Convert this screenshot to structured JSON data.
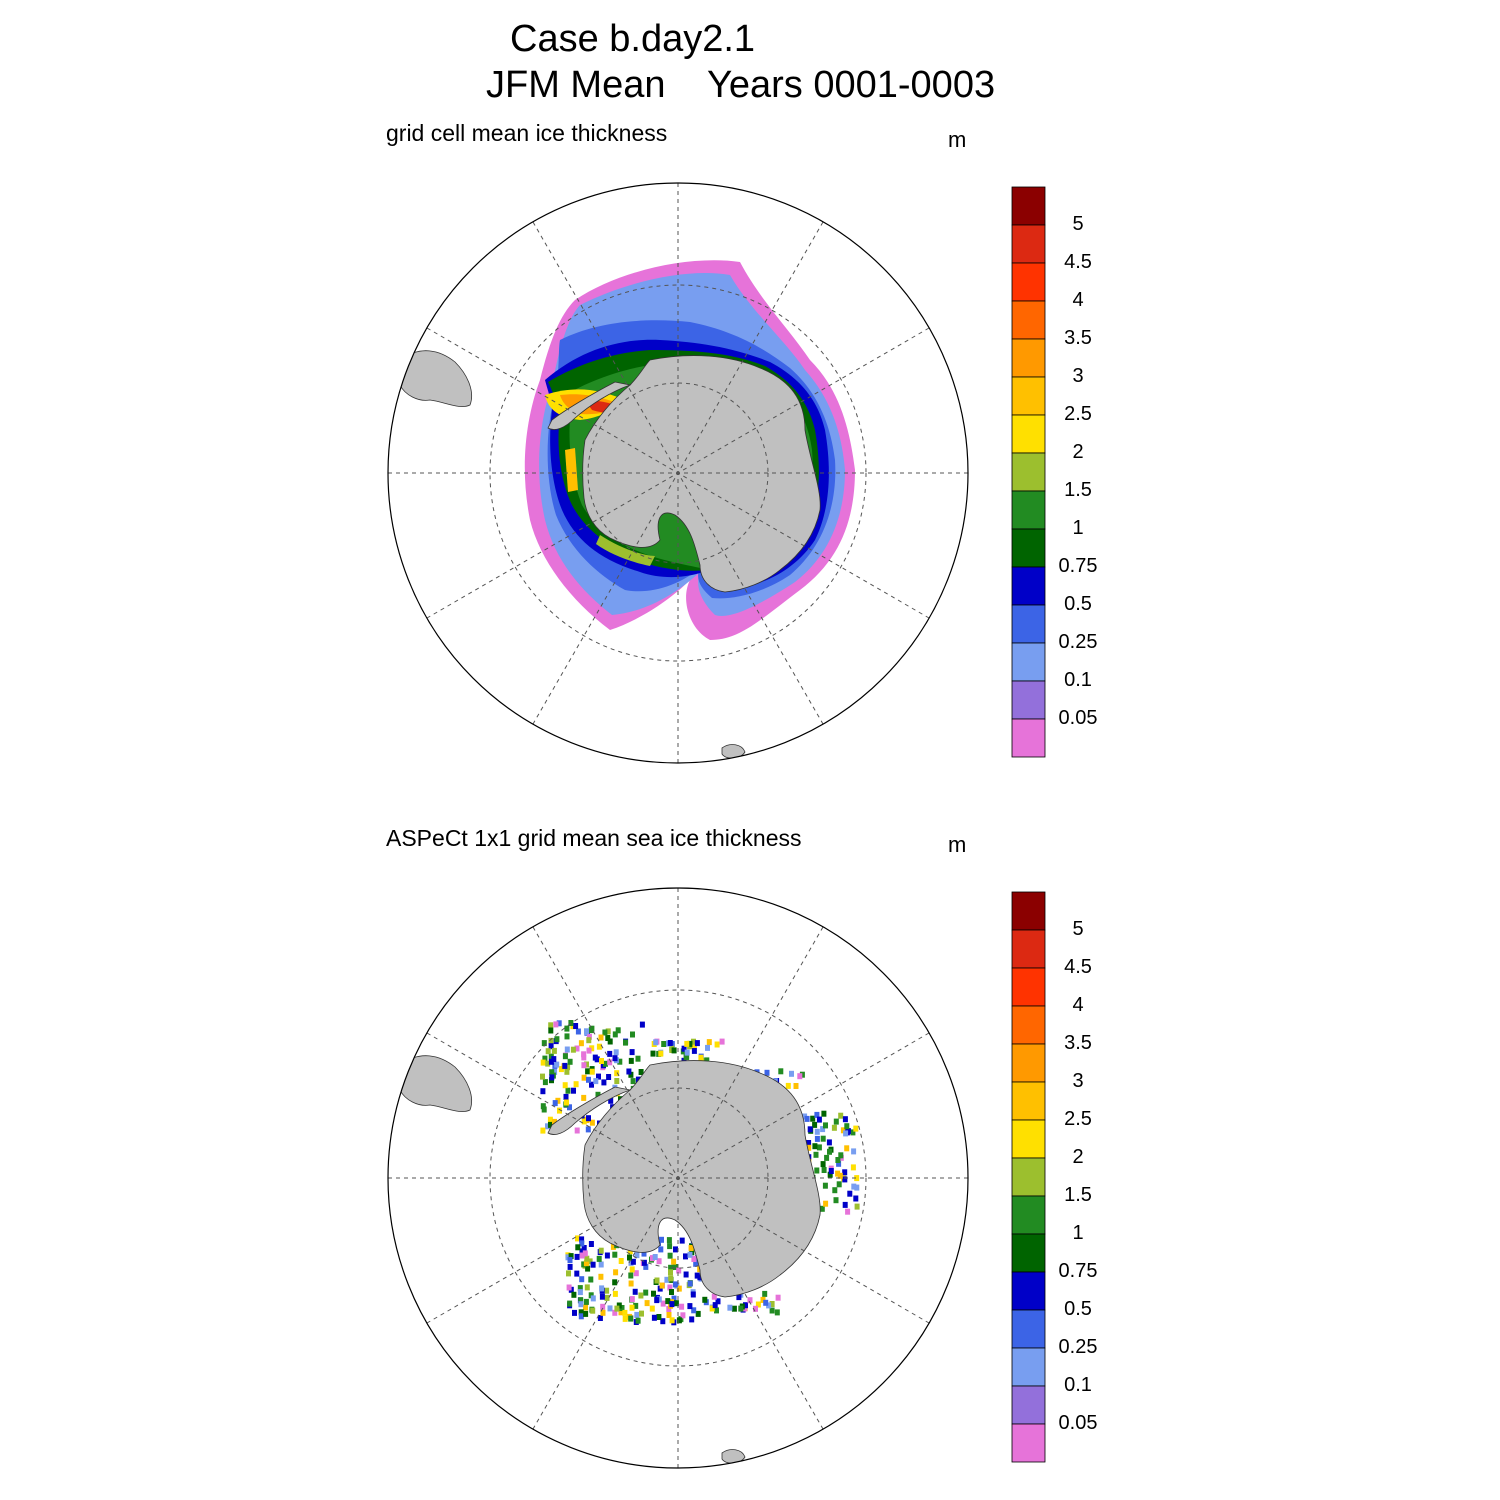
{
  "figure": {
    "title_line1": "Case b.day2.1",
    "title_line2": "JFM Mean    Years 0001-0003"
  },
  "panels": [
    {
      "id": "model",
      "title": "grid cell mean ice thickness",
      "units": "m"
    },
    {
      "id": "obs",
      "title": "ASPeCt 1x1 grid mean sea ice thickness",
      "units": "m"
    }
  ],
  "colorbar": {
    "labels": [
      "5",
      "4.5",
      "4",
      "3.5",
      "3",
      "2.5",
      "2",
      "1.5",
      "1",
      "0.75",
      "0.5",
      "0.25",
      "0.1",
      "0.05"
    ],
    "colors": [
      "#8b0000",
      "#dc2912",
      "#ff3300",
      "#ff6600",
      "#ff9900",
      "#ffc000",
      "#ffe000",
      "#9cbf2e",
      "#228b22",
      "#006400",
      "#0000c8",
      "#3c64e6",
      "#789ef0",
      "#9370db",
      "#e673d9"
    ]
  },
  "map": {
    "projection": "south-polar-stereographic",
    "land_color": "#c0c0c0",
    "grid_color": "#555555"
  },
  "chart_data": {
    "type": "heatmap",
    "variable": "sea ice thickness",
    "units": "m",
    "levels": [
      0.05,
      0.1,
      0.25,
      0.5,
      0.75,
      1,
      1.5,
      2,
      2.5,
      3,
      3.5,
      4,
      4.5,
      5
    ]
  }
}
